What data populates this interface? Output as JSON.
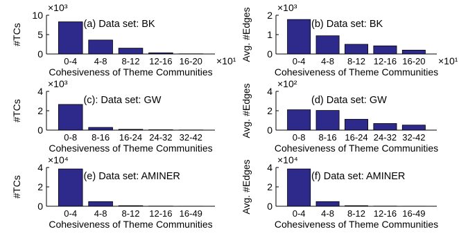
{
  "chart_data": [
    {
      "type": "bar",
      "panel": "(a) Data set: BK",
      "categories": [
        "0-4",
        "4-8",
        "8-12",
        "12-16",
        "16-20"
      ],
      "values": [
        8.3,
        3.6,
        1.5,
        0.3,
        0.05
      ],
      "ylim": [
        0,
        10
      ],
      "yticks": [
        "0",
        "5",
        "10"
      ],
      "ytick_values": [
        0,
        5,
        10
      ],
      "y_multiplier": "×10³",
      "x_multiplier": "×10¹",
      "ylabel": "#TCs",
      "xlabel": "Cohesiveness of Theme Communities"
    },
    {
      "type": "bar",
      "panel": "(b) Data set: BK",
      "categories": [
        "0-4",
        "4-8",
        "8-12",
        "12-16",
        "16-20"
      ],
      "values": [
        1.78,
        0.94,
        0.5,
        0.42,
        0.2
      ],
      "ylim": [
        0,
        2
      ],
      "yticks": [
        "0",
        "1",
        "2"
      ],
      "ytick_values": [
        0,
        1,
        2
      ],
      "y_multiplier": "×10³",
      "x_multiplier": "×10¹",
      "ylabel": "Avg. #Edges",
      "xlabel": "Cohesiveness of Theme Communities"
    },
    {
      "type": "bar",
      "panel": "(c): Data set: GW",
      "categories": [
        "0-8",
        "8-16",
        "16-24",
        "24-32",
        "32-42"
      ],
      "values": [
        2.65,
        0.28,
        0.08,
        0.04,
        0.02
      ],
      "ylim": [
        0,
        4
      ],
      "yticks": [
        "0",
        "2",
        "4"
      ],
      "ytick_values": [
        0,
        2,
        4
      ],
      "y_multiplier": "×10³",
      "x_multiplier": "",
      "ylabel": "#TCs",
      "xlabel": "Cohesiveness of Theme Communities"
    },
    {
      "type": "bar",
      "panel": "(d) Data set: GW",
      "categories": [
        "0-8",
        "8-16",
        "16-24",
        "24-32",
        "32-42"
      ],
      "values": [
        2.1,
        2.03,
        1.12,
        0.68,
        0.52
      ],
      "ylim": [
        0,
        4
      ],
      "yticks": [
        "0",
        "2",
        "4"
      ],
      "ytick_values": [
        0,
        2,
        4
      ],
      "y_multiplier": "×10²",
      "x_multiplier": "",
      "ylabel": "Avg. #Edges",
      "xlabel": "Cohesiveness of Theme Communities"
    },
    {
      "type": "bar",
      "panel": "(e) Data set: AMINER",
      "categories": [
        "0-4",
        "4-8",
        "8-12",
        "12-16",
        "16-49"
      ],
      "values": [
        3.85,
        0.48,
        0.06,
        0.02,
        0.01
      ],
      "ylim": [
        0,
        4
      ],
      "yticks": [
        "0",
        "2",
        "4"
      ],
      "ytick_values": [
        0,
        2,
        4
      ],
      "y_multiplier": "×10⁴",
      "x_multiplier": "",
      "ylabel": "#TCs",
      "xlabel": "Cohesiveness of Theme Communities"
    },
    {
      "type": "bar",
      "panel": "(f) Data set: AMINER",
      "categories": [
        "0-4",
        "4-8",
        "8-12",
        "12-16",
        "16-49"
      ],
      "values": [
        3.85,
        0.48,
        0.06,
        0.02,
        0.01
      ],
      "ylim": [
        0,
        4
      ],
      "yticks": [
        "0",
        "2",
        "4"
      ],
      "ytick_values": [
        0,
        2,
        4
      ],
      "y_multiplier": "×10⁴",
      "x_multiplier": "",
      "ylabel": "Avg. #Edges",
      "xlabel": "Cohesiveness of Theme Communities"
    }
  ],
  "colors": {
    "bar_fill": "#2e2a8c",
    "bar_stroke": "#000000",
    "axis": "#000000"
  }
}
